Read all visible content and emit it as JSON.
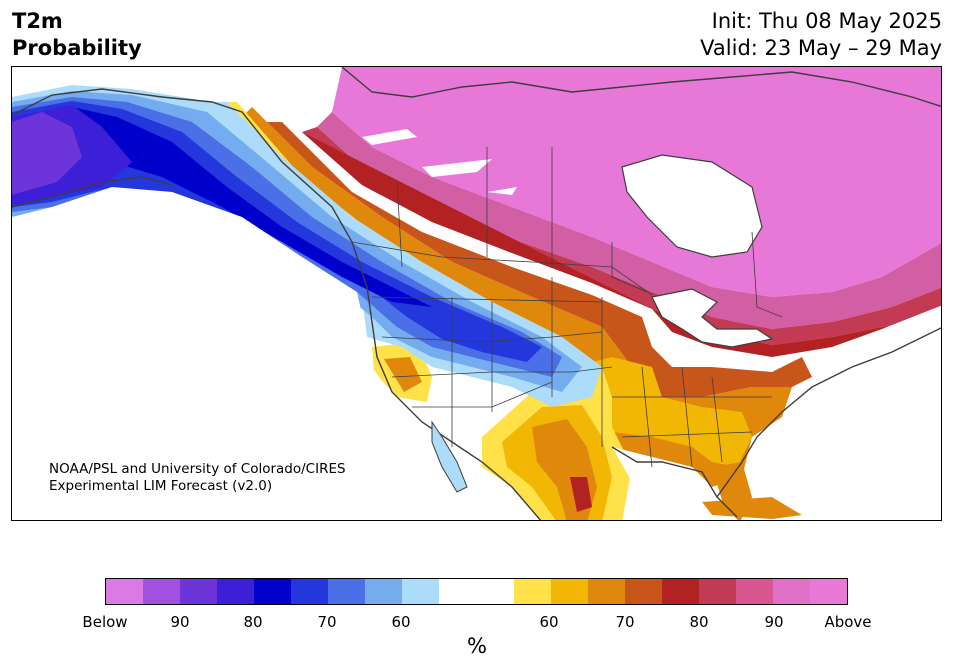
{
  "header": {
    "title_line1": "T2m",
    "title_line2": "Probability",
    "init": "Init: Thu 08 May 2025",
    "valid": "Valid: 23 May – 29 May"
  },
  "credit": {
    "line1": "NOAA/PSL and University of Colorado/CIRES",
    "line2": "Experimental LIM Forecast (v2.0)"
  },
  "colorbar": {
    "colors": [
      "#d97ae6",
      "#a051e0",
      "#6d35d9",
      "#3c1fd6",
      "#0000cc",
      "#2337dd",
      "#4a6fe6",
      "#75abef",
      "#addcfa",
      "#ffffff",
      "#ffffff",
      "#ffe14a",
      "#f2b705",
      "#e0880c",
      "#c8561a",
      "#b22222",
      "#c23a54",
      "#d9568e",
      "#e070c8",
      "#e878d8"
    ],
    "tick_labels": [
      "Below",
      "90",
      "80",
      "70",
      "60",
      "60",
      "70",
      "80",
      "90",
      "Above"
    ],
    "unit": "%"
  },
  "map": {
    "colors": {
      "land": "#ffffff",
      "ocean": "#ffffff",
      "coastline": "#3d3d3d",
      "pink_above": "#e878d8",
      "magenta": "#d25fa4",
      "crimson": "#c23a54",
      "red": "#b22222",
      "orange_red": "#c8561a",
      "orange": "#e0880c",
      "amber": "#f2b705",
      "yellow": "#ffe14a",
      "light_blue": "#addcfa",
      "sky_blue": "#75abef",
      "mid_blue": "#4a6fe6",
      "royal_blue": "#2337dd",
      "deep_blue": "#0000cc",
      "indigo": "#3c1fd6",
      "violet": "#6d35d9"
    }
  }
}
